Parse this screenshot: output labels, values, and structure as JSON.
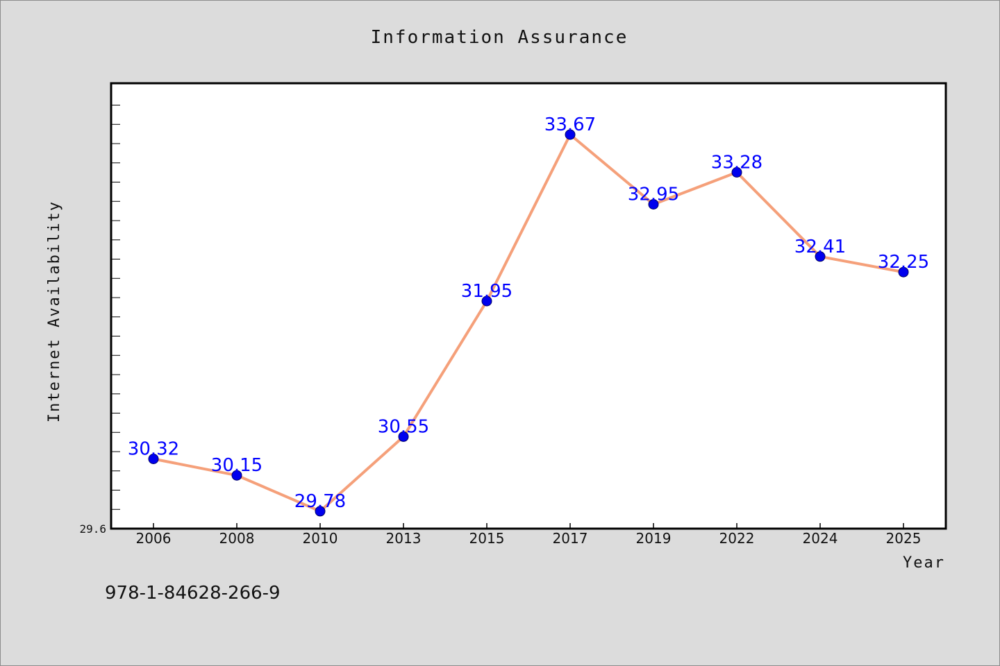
{
  "footer": {
    "code": "978-1-84628-266-9"
  },
  "chart_data": {
    "type": "line",
    "title": "Information Assurance",
    "xlabel": "Year",
    "ylabel": "Internet Availability",
    "categories": [
      "2006",
      "2008",
      "2010",
      "2013",
      "2015",
      "2017",
      "2019",
      "2022",
      "2024",
      "2025"
    ],
    "series": [
      {
        "values": [
          30.32,
          30.15,
          29.78,
          30.55,
          31.95,
          33.67,
          32.95,
          33.28,
          32.41,
          32.25
        ],
        "data_labels": [
          "30.32",
          "30.15",
          "29.78",
          "30.55",
          "31.95",
          "33.67",
          "32.95",
          "33.28",
          "32.41",
          "32.25"
        ]
      }
    ],
    "ylim": [
      29.6,
      34.2
    ],
    "y_tick_labels": [
      "29.6"
    ],
    "grid": false,
    "colors": {
      "line": "#f5a07a",
      "marker": "#0000ee",
      "data_label": "#0000ff",
      "plot_background": "#ffffff",
      "page_background": "#dcdcdc"
    }
  }
}
